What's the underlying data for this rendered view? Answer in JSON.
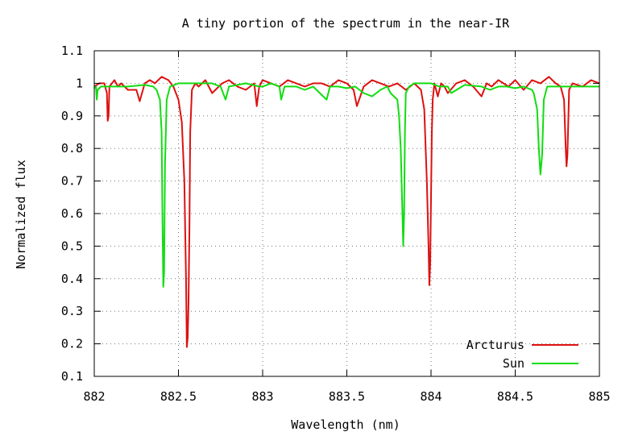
{
  "chart_data": {
    "type": "line",
    "title": "A tiny portion of the spectrum in the near-IR",
    "xlabel": "Wavelength (nm)",
    "ylabel": "Normalized flux",
    "xlim": [
      882,
      885
    ],
    "ylim": [
      0.1,
      1.1
    ],
    "x_ticks": [
      {
        "value": 882,
        "label": "882"
      },
      {
        "value": 882.5,
        "label": "882.5"
      },
      {
        "value": 883,
        "label": "883"
      },
      {
        "value": 883.5,
        "label": "883.5"
      },
      {
        "value": 884,
        "label": "884"
      },
      {
        "value": 884.5,
        "label": "884.5"
      },
      {
        "value": 885,
        "label": "885"
      }
    ],
    "y_ticks": [
      {
        "value": 0.1,
        "label": "0.1"
      },
      {
        "value": 0.2,
        "label": "0.2"
      },
      {
        "value": 0.3,
        "label": "0.3"
      },
      {
        "value": 0.4,
        "label": "0.4"
      },
      {
        "value": 0.5,
        "label": "0.5"
      },
      {
        "value": 0.6,
        "label": "0.6"
      },
      {
        "value": 0.7,
        "label": "0.7"
      },
      {
        "value": 0.8,
        "label": "0.8"
      },
      {
        "value": 0.9,
        "label": "0.9"
      },
      {
        "value": 1.0,
        "label": "1"
      },
      {
        "value": 1.1,
        "label": "1.1"
      }
    ],
    "grid": true,
    "legend_position": "bottom-right",
    "series": [
      {
        "name": "Arcturus",
        "color": "#dd1111",
        "x": [
          882.0,
          882.03,
          882.06,
          882.075,
          882.08,
          882.085,
          882.09,
          882.12,
          882.14,
          882.16,
          882.2,
          882.25,
          882.27,
          882.3,
          882.33,
          882.36,
          882.4,
          882.44,
          882.47,
          882.5,
          882.52,
          882.535,
          882.545,
          882.55,
          882.555,
          882.56,
          882.565,
          882.57,
          882.58,
          882.6,
          882.62,
          882.66,
          882.7,
          882.76,
          882.8,
          882.85,
          882.9,
          882.95,
          882.965,
          882.98,
          883.0,
          883.05,
          883.1,
          883.15,
          883.2,
          883.25,
          883.3,
          883.35,
          883.4,
          883.45,
          883.5,
          883.54,
          883.56,
          883.6,
          883.65,
          883.7,
          883.75,
          883.8,
          883.85,
          883.9,
          883.94,
          883.96,
          883.975,
          883.985,
          883.99,
          883.995,
          884.0,
          884.005,
          884.01,
          884.02,
          884.04,
          884.06,
          884.08,
          884.1,
          884.15,
          884.2,
          884.25,
          884.3,
          884.33,
          884.36,
          884.4,
          884.43,
          884.46,
          884.5,
          884.55,
          884.6,
          884.65,
          884.7,
          884.74,
          884.77,
          884.79,
          884.8,
          884.805,
          884.81,
          884.82,
          884.84,
          884.9,
          884.95,
          885.0
        ],
        "y": [
          0.99,
          1.0,
          1.0,
          0.97,
          0.885,
          0.9,
          0.99,
          1.01,
          0.99,
          1.0,
          0.98,
          0.98,
          0.945,
          1.0,
          1.01,
          1.0,
          1.02,
          1.01,
          0.99,
          0.95,
          0.88,
          0.7,
          0.4,
          0.19,
          0.22,
          0.33,
          0.55,
          0.85,
          0.98,
          1.0,
          0.99,
          1.01,
          0.97,
          1.0,
          1.01,
          0.99,
          0.98,
          1.0,
          0.93,
          0.99,
          1.01,
          1.0,
          0.99,
          1.01,
          1.0,
          0.99,
          1.0,
          1.0,
          0.99,
          1.01,
          1.0,
          0.98,
          0.93,
          0.99,
          1.01,
          1.0,
          0.99,
          1.0,
          0.98,
          1.0,
          0.98,
          0.92,
          0.7,
          0.5,
          0.38,
          0.45,
          0.65,
          0.85,
          0.95,
          1.0,
          0.96,
          1.0,
          0.99,
          0.97,
          1.0,
          1.01,
          0.99,
          0.96,
          1.0,
          0.99,
          1.01,
          1.0,
          0.99,
          1.01,
          0.98,
          1.01,
          1.0,
          1.02,
          1.0,
          0.99,
          0.95,
          0.8,
          0.745,
          0.78,
          0.98,
          1.0,
          0.99,
          1.01,
          1.0
        ]
      },
      {
        "name": "Sun",
        "color": "#11dd11",
        "x": [
          882.0,
          882.01,
          882.015,
          882.02,
          882.04,
          882.1,
          882.2,
          882.3,
          882.35,
          882.37,
          882.39,
          882.4,
          882.405,
          882.41,
          882.415,
          882.42,
          882.43,
          882.45,
          882.5,
          882.6,
          882.7,
          882.75,
          882.78,
          882.8,
          882.9,
          882.98,
          883.0,
          883.05,
          883.1,
          883.11,
          883.13,
          883.2,
          883.25,
          883.3,
          883.36,
          883.38,
          883.4,
          883.45,
          883.5,
          883.55,
          883.6,
          883.65,
          883.7,
          883.74,
          883.76,
          883.78,
          883.8,
          883.81,
          883.82,
          883.83,
          883.835,
          883.84,
          883.845,
          883.85,
          883.87,
          883.9,
          883.95,
          884.0,
          884.05,
          884.1,
          884.12,
          884.2,
          884.3,
          884.35,
          884.4,
          884.45,
          884.5,
          884.55,
          884.6,
          884.61,
          884.63,
          884.64,
          884.65,
          884.66,
          884.67,
          884.69,
          884.72,
          884.8,
          884.9,
          885.0
        ],
        "y": [
          0.985,
          0.99,
          0.95,
          0.98,
          0.99,
          0.99,
          0.99,
          0.995,
          0.99,
          0.98,
          0.95,
          0.85,
          0.6,
          0.375,
          0.42,
          0.75,
          0.95,
          0.99,
          1.0,
          1.0,
          1.0,
          0.99,
          0.95,
          0.99,
          1.0,
          0.99,
          0.99,
          1.0,
          0.99,
          0.95,
          0.99,
          0.99,
          0.98,
          0.99,
          0.96,
          0.95,
          0.99,
          0.99,
          0.985,
          0.99,
          0.97,
          0.96,
          0.98,
          0.99,
          0.97,
          0.96,
          0.95,
          0.9,
          0.8,
          0.6,
          0.5,
          0.6,
          0.85,
          0.97,
          0.99,
          1.0,
          1.0,
          1.0,
          0.99,
          0.99,
          0.97,
          0.995,
          0.99,
          0.98,
          0.99,
          0.99,
          0.985,
          0.99,
          0.98,
          0.97,
          0.92,
          0.8,
          0.72,
          0.78,
          0.95,
          0.99,
          0.99,
          0.99,
          0.99,
          0.99
        ]
      }
    ]
  }
}
